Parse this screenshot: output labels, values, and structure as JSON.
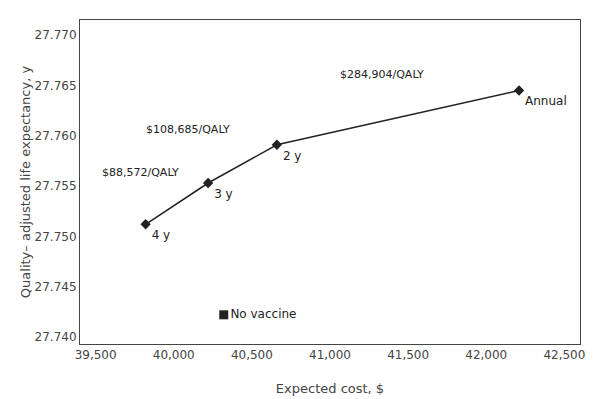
{
  "chart_data": {
    "type": "line",
    "xlabel": "Expected cost, $",
    "ylabel": "Quality– adjusted life expectancy, y",
    "series": [
      {
        "type": "line",
        "marker": "diamond",
        "color": "#222222",
        "x": [
          39820,
          40220,
          40660,
          42210
        ],
        "values": [
          27.7512,
          27.7553,
          27.7591,
          27.7645
        ],
        "labels": [
          "4 y",
          "3 y",
          "2 y",
          "Annual"
        ]
      },
      {
        "type": "scatter",
        "marker": "square",
        "color": "#222222",
        "x": [
          40320
        ],
        "values": [
          27.7422
        ],
        "labels": [
          "No vaccine"
        ]
      }
    ],
    "annotations": [
      {
        "text": "$88,572/QALY",
        "x": 39530,
        "y": 27.7555
      },
      {
        "text": "$108,685/QALY",
        "x": 39810,
        "y": 27.7598
      },
      {
        "text": "$284,904/QALY",
        "x": 41050,
        "y": 27.7652
      }
    ],
    "xlim": [
      39400,
      42600
    ],
    "ylim": [
      27.7393,
      27.7715
    ],
    "xticks": [
      {
        "value": 39500,
        "label": "39,500"
      },
      {
        "value": 40000,
        "label": "40,000"
      },
      {
        "value": 40500,
        "label": "40,500"
      },
      {
        "value": 41000,
        "label": "41,000"
      },
      {
        "value": 41500,
        "label": "41,500"
      },
      {
        "value": 42000,
        "label": "42,000"
      },
      {
        "value": 42500,
        "label": "42,500"
      }
    ],
    "yticks": [
      {
        "value": 27.74,
        "label": "27.740"
      },
      27.745,
      {
        "value": 27.75,
        "label": "27.750"
      },
      27.755,
      {
        "value": 27.76,
        "label": "27.760"
      },
      27.765,
      {
        "value": 27.77,
        "label": "27.770"
      }
    ],
    "grid": false
  }
}
